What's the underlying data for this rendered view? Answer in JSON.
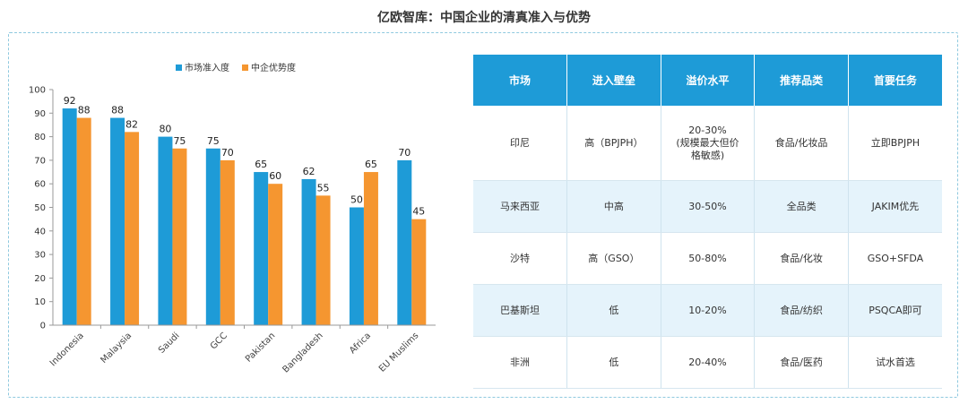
{
  "page": {
    "title": "亿欧智库：中国企业的清真准入与优势"
  },
  "chart_data": {
    "type": "bar",
    "categories": [
      "Indonesia",
      "Malaysia",
      "Saudi",
      "GCC",
      "Pakistan",
      "Bangladesh",
      "Africa",
      "EU Muslims"
    ],
    "series": [
      {
        "name": "市场准入度",
        "color": "#1e9bd7",
        "values": [
          92,
          88,
          80,
          75,
          65,
          62,
          50,
          70
        ]
      },
      {
        "name": "中企优势度",
        "color": "#f59630",
        "values": [
          88,
          82,
          75,
          70,
          60,
          55,
          65,
          45
        ]
      }
    ],
    "yticks": [
      0,
      10,
      20,
      30,
      40,
      50,
      60,
      70,
      80,
      90,
      100
    ],
    "ylim": [
      0,
      100
    ],
    "grid": false,
    "legend": "top-center",
    "xlabel": "",
    "ylabel": ""
  },
  "table": {
    "headers": [
      "市场",
      "进入壁垒",
      "溢价水平",
      "推荐品类",
      "首要任务"
    ],
    "rows": [
      [
        "印尼",
        "高（BPJPH）",
        "20-30%\n(规模最大但价\n格敏感)",
        "食品/化妆品",
        "立即BPJPH"
      ],
      [
        "马来西亚",
        "中高",
        "30-50%",
        "全品类",
        "JAKIM优先"
      ],
      [
        "沙特",
        "高（GSO）",
        "50-80%",
        "食品/化妆",
        "GSO+SFDA"
      ],
      [
        "巴基斯坦",
        "低",
        "10-20%",
        "食品/纺织",
        "PSQCA即可"
      ],
      [
        "非洲",
        "低",
        "20-40%",
        "食品/医药",
        "试水首选"
      ]
    ]
  }
}
